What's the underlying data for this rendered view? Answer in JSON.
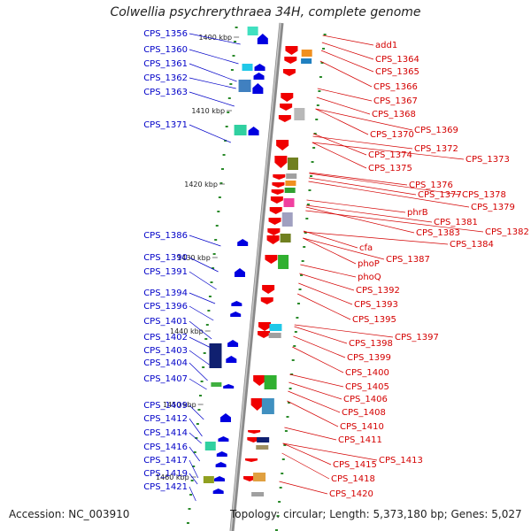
{
  "title": "Colwellia psychrerythraea 34H, complete genome",
  "accession": "Accession: NC_003910",
  "topology": "Topology: circular; Length: 5,373,180 bp; Genes: 5,027",
  "colors": {
    "left": "#0000c8",
    "right": "#d40000",
    "backbone": "#808080"
  },
  "scale_labels": [
    "1400 kbp",
    "1410 kbp",
    "1420 kbp",
    "1430 kbp",
    "1440 kbp",
    "1450 kbp",
    "1460 kbp"
  ],
  "left_genes": [
    "CPS_1356",
    "CPS_1360",
    "CPS_1361",
    "CPS_1362",
    "CPS_1363",
    "CPS_1371",
    "CPS_1386",
    "CPS_1390",
    "CPS_1391",
    "CPS_1394",
    "CPS_1396",
    "CPS_1401",
    "CPS_1402",
    "CPS_1403",
    "CPS_1404",
    "CPS_1407",
    "CPS_1409",
    "CPS_1412",
    "CPS_1414",
    "CPS_1416",
    "CPS_1417",
    "CPS_1419",
    "CPS_1421"
  ],
  "right_genes": [
    "add1",
    "CPS_1364",
    "CPS_1365",
    "CPS_1366",
    "CPS_1367",
    "CPS_1368",
    "CPS_1369",
    "CPS_1370",
    "CPS_1372",
    "CPS_1373",
    "CPS_1374",
    "CPS_1375",
    "CPS_1376",
    "CPS_1377",
    "CPS_1378",
    "CPS_1379",
    "phrB",
    "CPS_1381",
    "CPS_1382",
    "CPS_1383",
    "CPS_1384",
    "cfa",
    "CPS_1387",
    "phoP",
    "phoQ",
    "CPS_1392",
    "CPS_1393",
    "CPS_1395",
    "CPS_1397",
    "CPS_1398",
    "CPS_1399",
    "CPS_1400",
    "CPS_1405",
    "CPS_1406",
    "CPS_1408",
    "CPS_1410",
    "CPS_1411",
    "CPS_1413",
    "CPS_1415",
    "CPS_1418",
    "CPS_1420"
  ]
}
